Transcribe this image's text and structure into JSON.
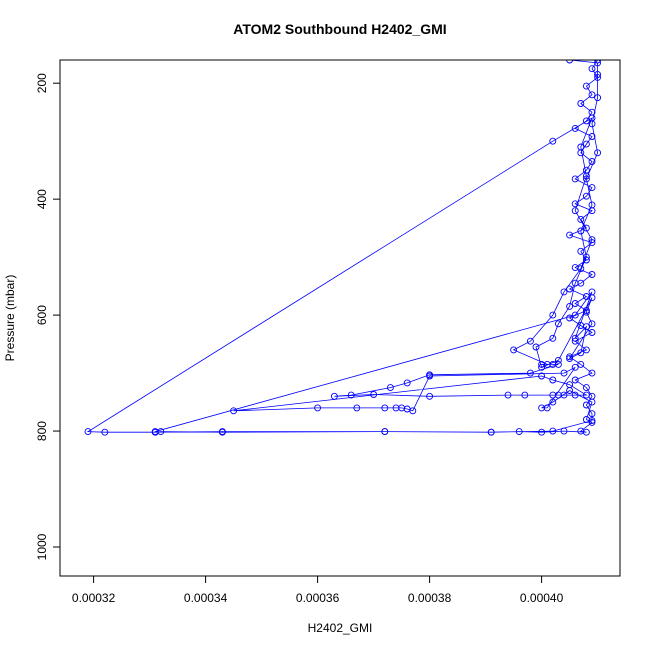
{
  "chart_data": {
    "type": "line",
    "title": "ATOM2 Southbound H2402_GMI",
    "xlabel": "H2402_GMI",
    "ylabel": "Pressure (mbar)",
    "xlim": [
      0.000314,
      0.000414
    ],
    "ylim": [
      1050,
      160
    ],
    "y_reversed": true,
    "xticks": [
      0.00032,
      0.00034,
      0.00036,
      0.00038,
      0.0004
    ],
    "xtick_labels": [
      "0.00032",
      "0.00034",
      "0.00036",
      "0.00038",
      "0.00040"
    ],
    "yticks": [
      200,
      400,
      600,
      800,
      1000
    ],
    "ytick_labels": [
      "200",
      "400",
      "600",
      "800",
      "1000"
    ],
    "grid": false,
    "legend": "none",
    "marker": "open-circle",
    "color": "#0000ff",
    "series": [
      {
        "values": [
          [
            0.00041,
            160
          ],
          [
            0.000409,
            175
          ],
          [
            0.00041,
            190
          ],
          [
            0.000408,
            205
          ],
          [
            0.000409,
            220
          ],
          [
            0.000407,
            235
          ],
          [
            0.000409,
            250
          ],
          [
            0.000408,
            265
          ],
          [
            0.000406,
            278
          ],
          [
            0.000409,
            292
          ],
          [
            0.000408,
            305
          ],
          [
            0.000407,
            320
          ],
          [
            0.000409,
            335
          ],
          [
            0.000408,
            350
          ],
          [
            0.000406,
            365
          ],
          [
            0.000409,
            380
          ],
          [
            0.000408,
            395
          ],
          [
            0.000406,
            408
          ],
          [
            0.000409,
            420
          ],
          [
            0.000407,
            435
          ],
          [
            0.000408,
            450
          ],
          [
            0.000405,
            462
          ],
          [
            0.000409,
            475
          ],
          [
            0.000407,
            490
          ],
          [
            0.000408,
            505
          ],
          [
            0.000406,
            518
          ],
          [
            0.000409,
            530
          ],
          [
            0.000407,
            545
          ],
          [
            0.000405,
            555
          ],
          [
            0.000408,
            568
          ],
          [
            0.000406,
            580
          ],
          [
            0.000408,
            592
          ],
          [
            0.000405,
            605
          ],
          [
            0.000407,
            618
          ],
          [
            0.000409,
            630
          ],
          [
            0.000406,
            645
          ],
          [
            0.000408,
            660
          ],
          [
            0.000405,
            672
          ],
          [
            0.000407,
            685
          ],
          [
            0.000409,
            700
          ],
          [
            0.000406,
            712
          ],
          [
            0.000408,
            725
          ],
          [
            0.000409,
            740
          ],
          [
            0.000408,
            755
          ],
          [
            0.000409,
            770
          ],
          [
            0.000409,
            782
          ],
          [
            0.000402,
            800
          ],
          [
            0.000391,
            802
          ],
          [
            0.000372,
            801
          ],
          [
            0.000343,
            801
          ],
          [
            0.000331,
            802
          ],
          [
            0.000322,
            802
          ],
          [
            0.000319,
            801
          ],
          [
            0.000402,
            300
          ],
          [
            0.000409,
            260
          ],
          [
            0.000407,
            310
          ],
          [
            0.000408,
            360
          ],
          [
            0.000406,
            420
          ],
          [
            0.000409,
            470
          ],
          [
            0.000407,
            520
          ],
          [
            0.000404,
            560
          ],
          [
            0.000402,
            600
          ],
          [
            0.000398,
            645
          ],
          [
            0.000395,
            660
          ],
          [
            0.000401,
            685
          ],
          [
            0.0004,
            685
          ],
          [
            0.000402,
            685
          ],
          [
            0.000403,
            685
          ],
          [
            0.000398,
            700
          ],
          [
            0.00038,
            703
          ],
          [
            0.000376,
            717
          ],
          [
            0.000373,
            725
          ],
          [
            0.000366,
            738
          ],
          [
            0.000363,
            740
          ],
          [
            0.00037,
            737
          ],
          [
            0.00038,
            740
          ],
          [
            0.000394,
            738
          ],
          [
            0.000397,
            738
          ],
          [
            0.000402,
            738
          ],
          [
            0.000403,
            738
          ],
          [
            0.000404,
            738
          ],
          [
            0.000406,
            738
          ],
          [
            0.000408,
            738
          ],
          [
            0.000405,
            720
          ],
          [
            0.000402,
            712
          ],
          [
            0.0004,
            705
          ],
          [
            0.000345,
            765
          ],
          [
            0.00036,
            760
          ],
          [
            0.000367,
            760
          ],
          [
            0.000372,
            760
          ],
          [
            0.000374,
            760
          ],
          [
            0.000375,
            760
          ],
          [
            0.000376,
            762
          ],
          [
            0.000377,
            765
          ],
          [
            0.00038,
            705
          ],
          [
            0.000404,
            700
          ],
          [
            0.000406,
            690
          ],
          [
            0.000401,
            760
          ],
          [
            0.0004,
            760
          ],
          [
            0.000402,
            750
          ],
          [
            0.000405,
            730
          ],
          [
            0.000409,
            750
          ],
          [
            0.000408,
            780
          ],
          [
            0.000409,
            785
          ],
          [
            0.000407,
            800
          ],
          [
            0.000408,
            802
          ],
          [
            0.000404,
            800
          ],
          [
            0.0004,
            802
          ],
          [
            0.000396,
            801
          ],
          [
            0.000391,
            802
          ],
          [
            0.000372,
            801
          ],
          [
            0.000343,
            802
          ],
          [
            0.000332,
            801
          ],
          [
            0.000331,
            802
          ],
          [
            0.000331,
            801
          ],
          [
            0.000406,
            600
          ],
          [
            0.000409,
            560
          ],
          [
            0.000406,
            640
          ],
          [
            0.000408,
            620
          ],
          [
            0.000407,
            665
          ],
          [
            0.000405,
            675
          ],
          [
            0.000409,
            615
          ],
          [
            0.000408,
            595
          ],
          [
            0.000409,
            570
          ],
          [
            0.000403,
            678
          ],
          [
            0.0004,
            690
          ],
          [
            0.000399,
            655
          ],
          [
            0.000402,
            640
          ],
          [
            0.000403,
            615
          ],
          [
            0.000405,
            585
          ],
          [
            0.000406,
            545
          ],
          [
            0.000408,
            500
          ],
          [
            0.000407,
            455
          ],
          [
            0.000409,
            410
          ],
          [
            0.000408,
            365
          ],
          [
            0.00041,
            320
          ],
          [
            0.000409,
            270
          ],
          [
            0.00041,
            225
          ],
          [
            0.00041,
            185
          ],
          [
            0.00041,
            165
          ],
          [
            0.000405,
            160
          ]
        ]
      }
    ]
  }
}
